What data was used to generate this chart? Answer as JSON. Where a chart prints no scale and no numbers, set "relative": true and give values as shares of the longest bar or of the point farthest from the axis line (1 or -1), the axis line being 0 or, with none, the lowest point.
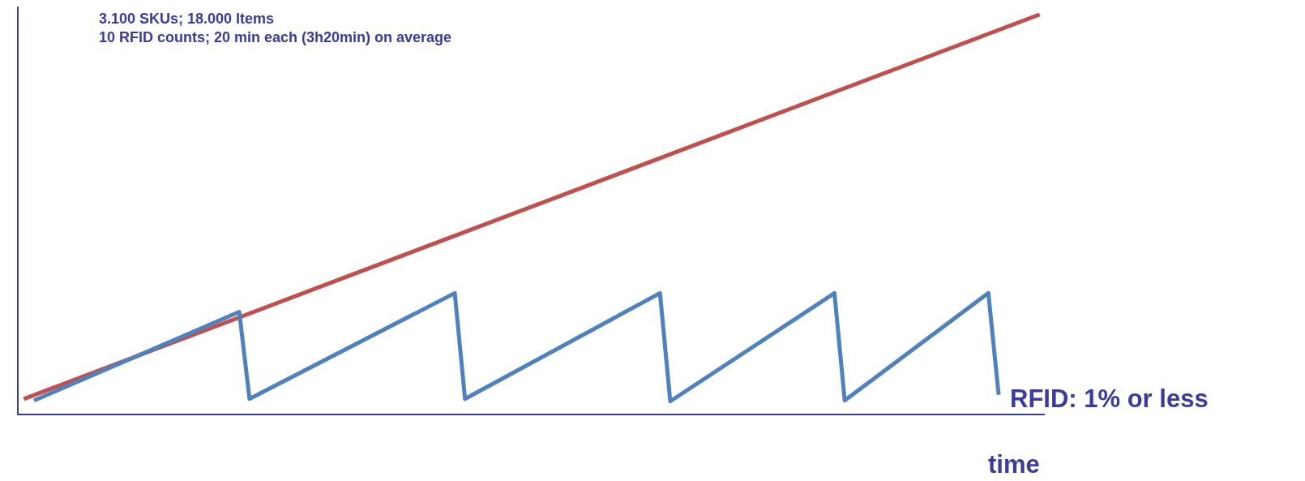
{
  "chart_data": {
    "type": "line",
    "relative": true,
    "title": "3.100 SKUs; 18.000 Items\n10 RFID counts; 20 min each (3h20min) on average",
    "xlabel": "time",
    "legend": false,
    "marker": "none",
    "line_style": "solid",
    "categories": [
      null,
      null,
      null,
      null,
      null,
      null,
      null,
      null,
      null,
      null,
      null,
      null,
      null,
      null,
      null,
      null,
      null,
      null,
      null,
      null,
      null,
      null,
      null,
      null,
      null,
      null,
      null,
      null,
      null,
      null,
      null,
      null,
      null,
      null,
      null,
      null,
      null,
      null,
      null,
      null,
      null,
      null,
      null,
      null,
      null,
      null,
      null,
      null,
      null,
      null,
      null,
      null,
      null,
      null,
      null,
      null,
      null,
      null,
      null,
      null,
      null,
      null,
      null,
      null,
      null,
      null,
      null,
      null,
      null,
      null,
      null,
      null,
      null,
      null,
      null,
      null,
      null,
      null,
      null,
      null,
      null,
      null,
      null,
      null,
      null,
      null,
      null,
      null,
      null,
      null,
      null,
      null,
      null,
      null,
      null,
      null,
      null,
      null,
      null,
      null
    ],
    "series": [
      {
        "color": "#c0504d",
        "values": [
          0.037,
          null,
          null,
          null,
          null,
          null,
          null,
          null,
          null,
          null,
          null,
          null,
          null,
          null,
          null,
          null,
          null,
          null,
          null,
          null,
          null,
          null,
          null,
          null,
          null,
          null,
          null,
          null,
          null,
          null,
          null,
          null,
          null,
          null,
          null,
          null,
          null,
          null,
          null,
          null,
          null,
          null,
          null,
          null,
          null,
          null,
          null,
          null,
          null,
          null,
          null,
          null,
          null,
          null,
          null,
          null,
          null,
          null,
          null,
          null,
          null,
          null,
          null,
          null,
          null,
          null,
          null,
          null,
          null,
          null,
          null,
          null,
          null,
          null,
          null,
          null,
          null,
          null,
          null,
          null,
          null,
          null,
          null,
          null,
          null,
          null,
          null,
          null,
          null,
          null,
          null,
          null,
          null,
          null,
          null,
          null,
          null,
          null,
          null,
          1.0
        ]
      },
      {
        "name": "RFID: 1% or less",
        "color": "#4f81bd",
        "values": [
          null,
          0.033,
          null,
          null,
          null,
          null,
          null,
          null,
          null,
          null,
          null,
          null,
          null,
          null,
          null,
          null,
          null,
          null,
          null,
          null,
          null,
          0.255,
          0.037,
          null,
          null,
          null,
          null,
          null,
          null,
          null,
          null,
          null,
          null,
          null,
          null,
          null,
          null,
          null,
          null,
          null,
          null,
          null,
          0.302,
          0.037,
          null,
          null,
          null,
          null,
          null,
          null,
          null,
          null,
          null,
          null,
          null,
          null,
          null,
          null,
          null,
          null,
          null,
          null,
          0.302,
          0.031,
          null,
          null,
          null,
          null,
          null,
          null,
          null,
          null,
          null,
          null,
          null,
          null,
          null,
          null,
          null,
          0.302,
          0.033,
          null,
          null,
          null,
          null,
          null,
          null,
          null,
          null,
          null,
          null,
          null,
          null,
          null,
          0.302,
          0.047,
          null,
          null,
          null,
          null
        ]
      }
    ]
  }
}
